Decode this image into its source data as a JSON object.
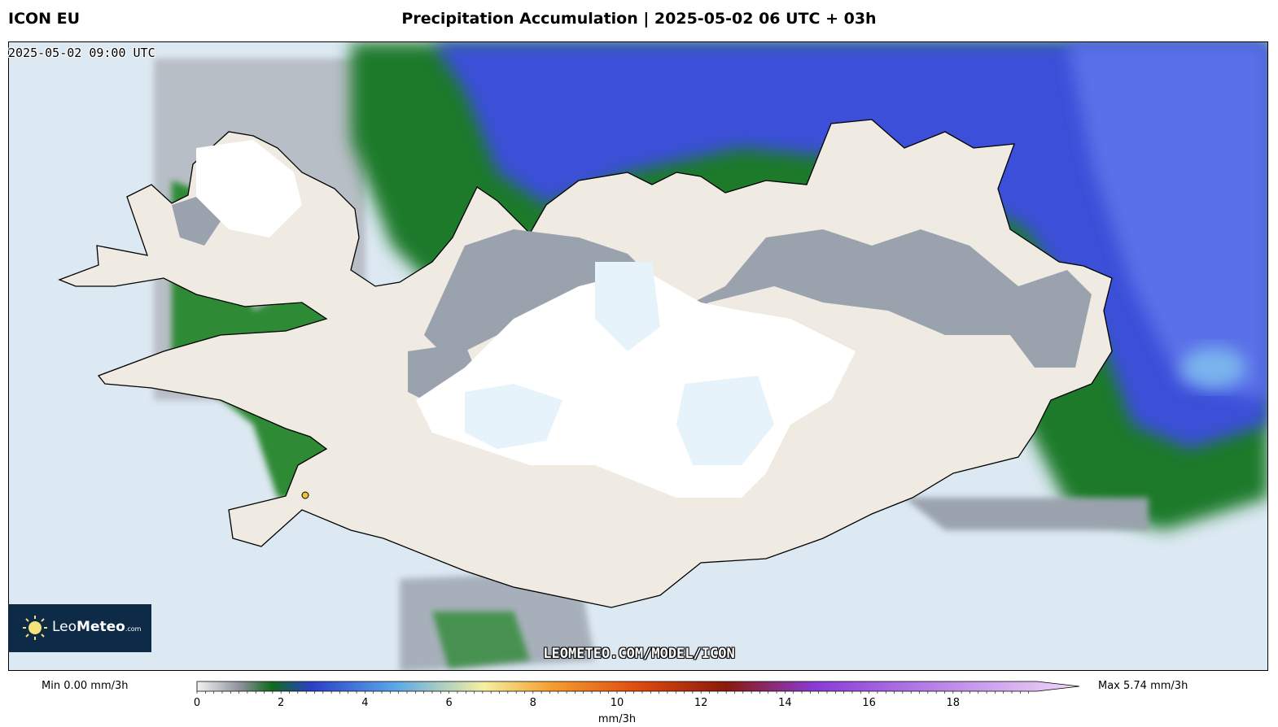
{
  "header": {
    "model": "ICON EU",
    "title": "Precipitation Accumulation | 2025-05-02 06 UTC + 03h"
  },
  "map": {
    "valid_time": "2025-05-02 09:00 UTC",
    "watermark": "LEOMETEO.COM/MODEL/ICON",
    "logo": {
      "brand_light": "Leo",
      "brand_bold": "Meteo",
      "suffix": ".com"
    },
    "colors": {
      "sea": "#dce8f2",
      "land": "#efebe2",
      "snow": "#ffffff",
      "ice": "#e6f3fb",
      "light_precip": "#9aa3ad",
      "moderate_precip": "#1f7a2a",
      "heavier_precip": "#3a4fd8",
      "logo_bg": "#0d2a47"
    }
  },
  "colorbar": {
    "min_label": "Min 0.00 mm/3h",
    "max_label": "Max 5.74 mm/3h",
    "unit": "mm/3h",
    "range": [
      0,
      20
    ],
    "ticks": [
      "0",
      "2",
      "4",
      "6",
      "8",
      "10",
      "12",
      "14",
      "16",
      "18"
    ],
    "stops": [
      {
        "value": 0,
        "color": "#f2f2f2"
      },
      {
        "value": 1,
        "color": "#8a9099"
      },
      {
        "value": 1.7,
        "color": "#0f6b1a"
      },
      {
        "value": 2.6,
        "color": "#2b3fc9"
      },
      {
        "value": 4.5,
        "color": "#5aa8e8"
      },
      {
        "value": 6.5,
        "color": "#f5f0a0"
      },
      {
        "value": 8,
        "color": "#f5a030"
      },
      {
        "value": 10,
        "color": "#e04a10"
      },
      {
        "value": 12,
        "color": "#8a1a0a"
      },
      {
        "value": 14,
        "color": "#8a3ad8"
      },
      {
        "value": 20,
        "color": "#f0d8f8"
      }
    ]
  }
}
